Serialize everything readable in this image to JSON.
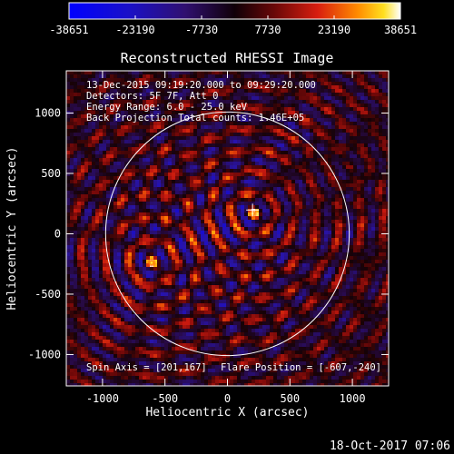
{
  "chart_data": {
    "type": "heatmap",
    "title": "Reconstructed RHESSI Image",
    "xlabel": "Heliocentric X (arcsec)",
    "ylabel": "Heliocentric Y (arcsec)",
    "xlim": [
      -1290,
      1290
    ],
    "ylim": [
      -1260,
      1350
    ],
    "x_ticks": [
      -1000,
      -500,
      0,
      500,
      1000
    ],
    "y_ticks": [
      -1000,
      -500,
      0,
      500,
      1000
    ],
    "colorbar": {
      "range": [
        -38651,
        38651
      ],
      "ticks": [
        -38651,
        -23190,
        -7730,
        7730,
        23190,
        38651
      ],
      "tick_labels": [
        "-38651",
        "-23190",
        "-7730",
        "7730",
        "23190",
        "38651"
      ]
    },
    "info_lines": [
      "13-Dec-2015 09:19:20.000 to 09:29:20.000",
      "Detectors: 5F 7F, Att 0",
      "Energy Range: 6.0 - 25.0 keV",
      "Back Projection    Total counts: 1.46E+05"
    ],
    "spin_axis_text": "Spin Axis = [201,167]",
    "flare_position_text": "Flare Position = [-607,-240]",
    "solar_limb_radius_arcsec": 975,
    "sources": [
      {
        "x": 201,
        "y": 167,
        "marker": "cross"
      },
      {
        "x": -607,
        "y": -240,
        "marker": "none"
      }
    ],
    "grid": false
  },
  "footer": {
    "timestamp": "18-Oct-2017 07:06"
  }
}
